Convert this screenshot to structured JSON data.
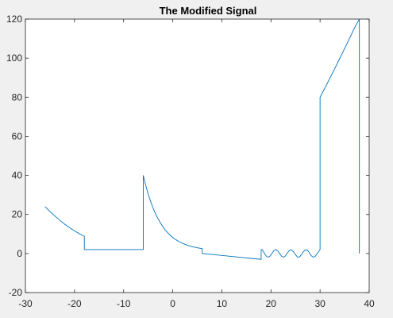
{
  "chart_data": {
    "type": "line",
    "title": "The Modified Signal",
    "xlabel": "",
    "ylabel": "",
    "xlim": [
      -30,
      40
    ],
    "ylim": [
      -20,
      120
    ],
    "xticks": [
      -30,
      -20,
      -10,
      0,
      10,
      20,
      30,
      40
    ],
    "yticks": [
      -20,
      0,
      20,
      40,
      60,
      80,
      100,
      120
    ],
    "grid": false,
    "legend": "none",
    "colors": {
      "line": "#0072bd",
      "axes_background": "#ffffff",
      "figure_background": "#f0f0f0",
      "axis": "#262626"
    },
    "series": [
      {
        "x": [
          -26,
          -25,
          -24,
          -23,
          -22,
          -21,
          -20,
          -19,
          -18,
          -18,
          -17,
          -16,
          -14,
          -12,
          -10,
          -8,
          -6,
          -6,
          -5.5,
          -5,
          -4.5,
          -4,
          -3.5,
          -3,
          -2.5,
          -2,
          -1.5,
          -1,
          -0.5,
          0,
          0.5,
          1,
          1.5,
          2,
          2.5,
          3,
          3.5,
          4,
          4.5,
          5,
          5.5,
          6,
          6,
          8,
          10,
          12,
          14,
          16,
          18,
          18,
          18.2,
          18.6,
          19,
          19.4,
          19.8,
          20.2,
          20.6,
          21,
          21.4,
          21.8,
          22.2,
          22.6,
          23,
          23.4,
          23.8,
          24.2,
          24.6,
          25,
          25.4,
          25.8,
          26.2,
          26.6,
          27,
          27.4,
          27.8,
          28.2,
          28.6,
          29,
          29.4,
          29.8,
          30,
          30,
          31,
          32,
          33,
          34,
          35,
          36,
          37,
          38,
          38
        ],
        "values": [
          24,
          21.5,
          19.2,
          17,
          15,
          13.2,
          11.6,
          10.1,
          8.8,
          2,
          2,
          2,
          2,
          2,
          2,
          2,
          2,
          40,
          34.9,
          30.4,
          26.6,
          23.2,
          20.3,
          17.8,
          15.6,
          13.7,
          12,
          10.6,
          9.3,
          8.2,
          7.3,
          6.5,
          5.8,
          5.2,
          4.7,
          4.2,
          3.8,
          3.5,
          3.2,
          2.9,
          2.7,
          2.5,
          0,
          -0.5,
          -1,
          -1.5,
          -2,
          -2.5,
          -3,
          2,
          2,
          0.4,
          -1.2,
          -1.9,
          -1.4,
          0,
          1.5,
          2,
          1.3,
          -0.1,
          -1.5,
          -1.9,
          -1.1,
          0.5,
          1.7,
          1.9,
          0.9,
          -0.6,
          -1.8,
          -1.8,
          -0.6,
          0.9,
          1.9,
          1.7,
          0.5,
          -1.1,
          -1.9,
          -1.5,
          -0.1,
          1.3,
          2,
          80,
          84.8,
          89.7,
          94.7,
          99.8,
          104.9,
          110.1,
          115.4,
          120,
          0
        ]
      }
    ]
  }
}
